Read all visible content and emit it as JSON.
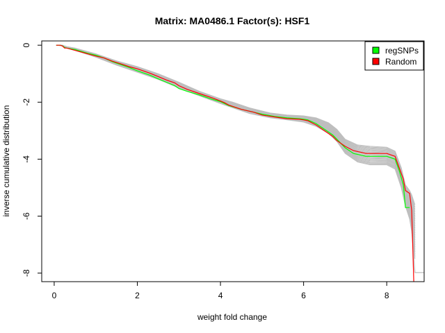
{
  "chart_data": {
    "type": "line",
    "title": "Matrix: MA0486.1 Factor(s): HSF1",
    "xlabel": "weight fold change",
    "ylabel": "inverse cumulative distribution",
    "xlim": [
      -0.3,
      8.9
    ],
    "ylim": [
      -8.3,
      0.15
    ],
    "x_ticks": [
      0,
      2,
      4,
      6,
      8
    ],
    "y_ticks": [
      0,
      -2,
      -4,
      -6,
      -8
    ],
    "grid": false,
    "legend_position": "top-right",
    "background_runs": {
      "color": "#bebebe",
      "envelope": {
        "x": [
          0.05,
          0.2,
          0.3,
          0.5,
          1.0,
          1.5,
          2.0,
          2.5,
          3.0,
          3.5,
          4.0,
          4.3,
          4.7,
          5.2,
          5.6,
          6.0,
          6.3,
          6.6,
          6.8,
          7.0,
          7.3,
          7.6,
          8.0,
          8.2,
          8.35,
          8.45,
          8.55,
          8.6,
          8.68
        ],
        "upper": [
          0.0,
          0.0,
          -0.05,
          -0.1,
          -0.3,
          -0.55,
          -0.75,
          -1.0,
          -1.3,
          -1.62,
          -1.88,
          -2.0,
          -2.2,
          -2.38,
          -2.45,
          -2.48,
          -2.55,
          -2.72,
          -2.95,
          -3.3,
          -3.5,
          -3.55,
          -3.58,
          -3.72,
          -4.3,
          -4.9,
          -5.1,
          -5.25,
          -5.6
        ],
        "lower": [
          0.0,
          -0.02,
          -0.1,
          -0.18,
          -0.42,
          -0.7,
          -0.95,
          -1.2,
          -1.5,
          -1.78,
          -2.05,
          -2.2,
          -2.4,
          -2.55,
          -2.62,
          -2.7,
          -2.85,
          -3.1,
          -3.38,
          -3.8,
          -4.1,
          -4.2,
          -4.2,
          -4.35,
          -5.0,
          -5.65,
          -6.1,
          -6.55,
          -7.5
        ]
      },
      "tail": {
        "x": [
          8.6,
          8.68,
          8.9
        ],
        "y": [
          -6.5,
          -7.98,
          -7.98
        ]
      }
    },
    "series": [
      {
        "name": "regSNPs",
        "color": "#00ff00",
        "x": [
          0.05,
          0.15,
          0.2,
          0.25,
          0.3,
          0.5,
          0.8,
          1.0,
          1.2,
          1.4,
          1.6,
          1.8,
          2.0,
          2.3,
          2.5,
          2.7,
          2.9,
          3.0,
          3.2,
          3.5,
          3.8,
          4.0,
          4.1,
          4.2,
          4.5,
          4.8,
          5.0,
          5.3,
          5.6,
          5.9,
          6.0,
          6.1,
          6.3,
          6.5,
          6.7,
          6.8,
          7.0,
          7.2,
          7.5,
          7.8,
          8.0,
          8.2,
          8.3,
          8.4,
          8.45,
          8.55
        ],
        "y": [
          0.0,
          0.0,
          -0.02,
          -0.08,
          -0.1,
          -0.15,
          -0.28,
          -0.35,
          -0.45,
          -0.58,
          -0.68,
          -0.78,
          -0.9,
          -1.05,
          -1.18,
          -1.3,
          -1.42,
          -1.52,
          -1.62,
          -1.75,
          -1.9,
          -1.98,
          -2.05,
          -2.12,
          -2.25,
          -2.35,
          -2.42,
          -2.5,
          -2.55,
          -2.58,
          -2.6,
          -2.62,
          -2.75,
          -2.95,
          -3.15,
          -3.3,
          -3.6,
          -3.8,
          -3.9,
          -3.9,
          -3.9,
          -4.0,
          -4.4,
          -4.9,
          -5.7,
          -5.7
        ]
      },
      {
        "name": "Random",
        "color": "#ff0000",
        "x": [
          0.05,
          0.15,
          0.2,
          0.25,
          0.3,
          0.5,
          0.8,
          1.0,
          1.2,
          1.4,
          1.6,
          1.8,
          2.0,
          2.3,
          2.5,
          2.7,
          2.9,
          3.0,
          3.2,
          3.5,
          3.8,
          4.0,
          4.1,
          4.2,
          4.5,
          4.8,
          5.0,
          5.3,
          5.6,
          5.9,
          6.0,
          6.1,
          6.3,
          6.5,
          6.7,
          6.8,
          7.0,
          7.2,
          7.5,
          7.8,
          8.0,
          8.2,
          8.3,
          8.4,
          8.45,
          8.55,
          8.6,
          8.65
        ],
        "y": [
          0.0,
          0.0,
          -0.03,
          -0.1,
          -0.1,
          -0.18,
          -0.3,
          -0.38,
          -0.45,
          -0.56,
          -0.65,
          -0.75,
          -0.83,
          -0.98,
          -1.1,
          -1.22,
          -1.32,
          -1.42,
          -1.55,
          -1.7,
          -1.85,
          -1.96,
          -2.02,
          -2.1,
          -2.25,
          -2.35,
          -2.45,
          -2.52,
          -2.58,
          -2.6,
          -2.62,
          -2.65,
          -2.8,
          -3.0,
          -3.2,
          -3.35,
          -3.55,
          -3.7,
          -3.8,
          -3.8,
          -3.8,
          -3.9,
          -4.3,
          -4.7,
          -5.1,
          -5.2,
          -5.8,
          -8.3
        ]
      }
    ]
  }
}
